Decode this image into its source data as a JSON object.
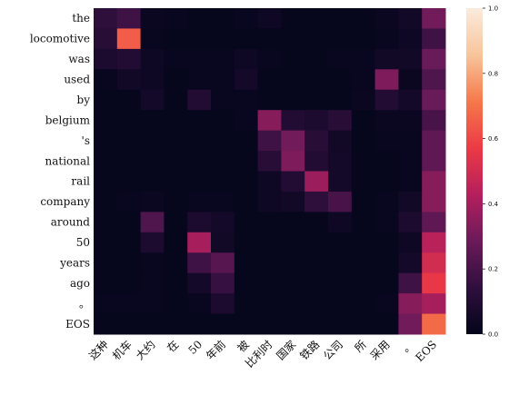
{
  "chart_data": {
    "type": "heatmap",
    "x_tokens": [
      "这种",
      "机车",
      "大约",
      "在",
      "50",
      "年前",
      "被",
      "比利时",
      "国家",
      "铁路",
      "公司",
      "所",
      "采用",
      "。",
      "EOS"
    ],
    "y_tokens": [
      "the",
      "locomotive",
      "was",
      "used",
      "by",
      "belgium",
      "'s",
      "national",
      "rail",
      "company",
      "around",
      "50",
      "years",
      "ago",
      "。",
      "EOS"
    ],
    "values": [
      [
        0.14,
        0.18,
        0.03,
        0.02,
        0.01,
        0.01,
        0.02,
        0.04,
        0.01,
        0.01,
        0.01,
        0.01,
        0.03,
        0.05,
        0.3
      ],
      [
        0.12,
        0.65,
        0.02,
        0.01,
        0.01,
        0.01,
        0.01,
        0.01,
        0.01,
        0.01,
        0.01,
        0.01,
        0.02,
        0.04,
        0.18
      ],
      [
        0.08,
        0.1,
        0.04,
        0.02,
        0.02,
        0.02,
        0.04,
        0.02,
        0.01,
        0.01,
        0.02,
        0.02,
        0.05,
        0.05,
        0.28
      ],
      [
        0.02,
        0.05,
        0.04,
        0.01,
        0.02,
        0.02,
        0.06,
        0.01,
        0.01,
        0.01,
        0.01,
        0.02,
        0.32,
        0.03,
        0.22
      ],
      [
        0.01,
        0.01,
        0.06,
        0.01,
        0.1,
        0.02,
        0.02,
        0.01,
        0.01,
        0.01,
        0.01,
        0.03,
        0.1,
        0.06,
        0.28
      ],
      [
        0.01,
        0.01,
        0.01,
        0.01,
        0.01,
        0.01,
        0.02,
        0.34,
        0.1,
        0.08,
        0.12,
        0.01,
        0.03,
        0.03,
        0.2
      ],
      [
        0.01,
        0.01,
        0.01,
        0.01,
        0.01,
        0.01,
        0.01,
        0.18,
        0.3,
        0.12,
        0.05,
        0.01,
        0.02,
        0.02,
        0.26
      ],
      [
        0.01,
        0.01,
        0.01,
        0.01,
        0.01,
        0.01,
        0.01,
        0.12,
        0.32,
        0.1,
        0.06,
        0.01,
        0.01,
        0.02,
        0.26
      ],
      [
        0.01,
        0.01,
        0.01,
        0.01,
        0.01,
        0.01,
        0.01,
        0.04,
        0.1,
        0.38,
        0.06,
        0.01,
        0.01,
        0.02,
        0.34
      ],
      [
        0.01,
        0.02,
        0.03,
        0.01,
        0.02,
        0.02,
        0.01,
        0.04,
        0.05,
        0.14,
        0.2,
        0.01,
        0.02,
        0.05,
        0.34
      ],
      [
        0.01,
        0.01,
        0.22,
        0.01,
        0.08,
        0.06,
        0.01,
        0.01,
        0.01,
        0.01,
        0.04,
        0.01,
        0.02,
        0.08,
        0.26
      ],
      [
        0.01,
        0.01,
        0.08,
        0.01,
        0.4,
        0.05,
        0.01,
        0.01,
        0.01,
        0.01,
        0.01,
        0.01,
        0.01,
        0.04,
        0.44
      ],
      [
        0.01,
        0.01,
        0.02,
        0.01,
        0.18,
        0.24,
        0.01,
        0.01,
        0.01,
        0.01,
        0.01,
        0.01,
        0.01,
        0.06,
        0.5
      ],
      [
        0.01,
        0.01,
        0.02,
        0.01,
        0.06,
        0.16,
        0.01,
        0.01,
        0.01,
        0.01,
        0.01,
        0.01,
        0.01,
        0.18,
        0.56
      ],
      [
        0.02,
        0.02,
        0.02,
        0.01,
        0.02,
        0.08,
        0.01,
        0.01,
        0.01,
        0.01,
        0.01,
        0.01,
        0.02,
        0.34,
        0.4
      ],
      [
        0.01,
        0.01,
        0.01,
        0.01,
        0.01,
        0.01,
        0.01,
        0.01,
        0.01,
        0.01,
        0.01,
        0.01,
        0.01,
        0.3,
        0.68
      ]
    ],
    "colorbar": {
      "range": [
        0.0,
        1.0
      ],
      "ticks": [
        0.0,
        0.2,
        0.4,
        0.6,
        0.8,
        1.0
      ],
      "tick_labels": [
        "0.0",
        "0.2",
        "0.4",
        "0.6",
        "0.8",
        "1.0"
      ],
      "colormap": "magma-like",
      "colors": [
        "#03051a",
        "#2f0f3d",
        "#6b1a5a",
        "#b51f5d",
        "#ec3a45",
        "#f5794a",
        "#f8c59b",
        "#faebdd"
      ]
    },
    "title": "",
    "xlabel": "",
    "ylabel": ""
  }
}
